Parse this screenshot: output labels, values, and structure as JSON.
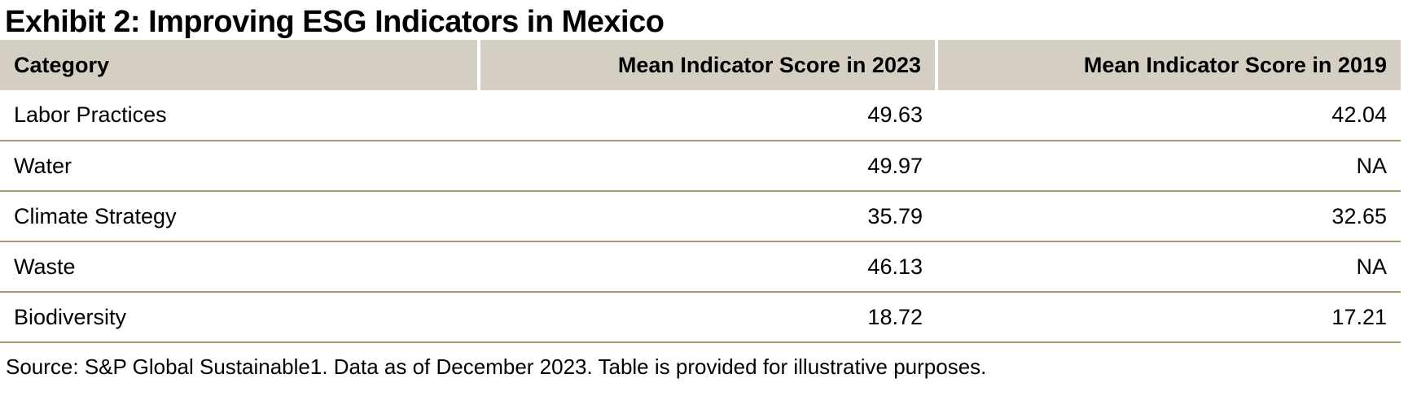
{
  "title": "Exhibit 2: Improving ESG Indicators in Mexico",
  "table": {
    "columns": [
      "Category",
      "Mean Indicator Score in 2023",
      "Mean Indicator Score in 2019"
    ],
    "rows": [
      {
        "category": "Labor Practices",
        "score_2023": "49.63",
        "score_2019": "42.04"
      },
      {
        "category": "Water",
        "score_2023": "49.97",
        "score_2019": "NA"
      },
      {
        "category": "Climate Strategy",
        "score_2023": "35.79",
        "score_2019": "32.65"
      },
      {
        "category": "Waste",
        "score_2023": "46.13",
        "score_2019": "NA"
      },
      {
        "category": "Biodiversity",
        "score_2023": "18.72",
        "score_2019": "17.21"
      }
    ]
  },
  "source": "Source: S&P Global Sustainable1. Data as of December 2023. Table is provided for illustrative purposes.",
  "colors": {
    "header_background": "#d4cfc2",
    "row_divider": "#a99872",
    "text": "#000000",
    "page_background": "#ffffff"
  },
  "chart_data": {
    "type": "table",
    "title": "Exhibit 2: Improving ESG Indicators in Mexico",
    "categories": [
      "Labor Practices",
      "Water",
      "Climate Strategy",
      "Waste",
      "Biodiversity"
    ],
    "series": [
      {
        "name": "Mean Indicator Score in 2023",
        "values": [
          49.63,
          49.97,
          35.79,
          46.13,
          18.72
        ]
      },
      {
        "name": "Mean Indicator Score in 2019",
        "values": [
          42.04,
          null,
          32.65,
          null,
          17.21
        ]
      }
    ],
    "na_label": "NA"
  }
}
